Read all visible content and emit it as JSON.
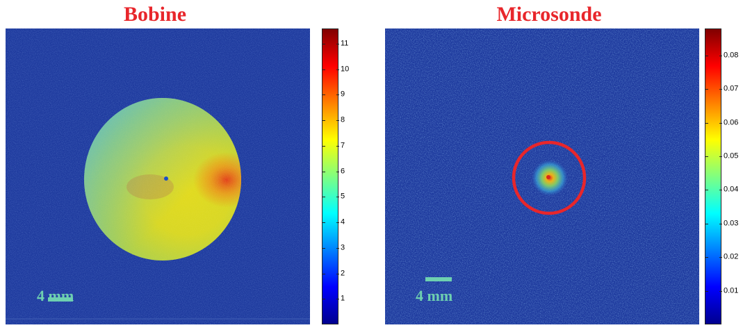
{
  "panels": [
    {
      "title": "Bobine",
      "scale_bar": "4 mm",
      "colormap": "jet",
      "colorbar": {
        "min": 0,
        "max": 11.6,
        "ticks": [
          "1",
          "2",
          "3",
          "4",
          "5",
          "6",
          "7",
          "8",
          "9",
          "10",
          "11"
        ]
      }
    },
    {
      "title": "Microsonde",
      "scale_bar": "4 mm",
      "colormap": "jet",
      "colorbar": {
        "min": 0,
        "max": 0.088,
        "ticks": [
          "0.01",
          "0.02",
          "0.03",
          "0.04",
          "0.05",
          "0.06",
          "0.07",
          "0.08"
        ]
      }
    }
  ],
  "colors": {
    "title": "#e8262b",
    "scale_bar": "#6ed0b0",
    "highlight_circle": "#e8262b",
    "background_field": "#1e3a9e"
  }
}
